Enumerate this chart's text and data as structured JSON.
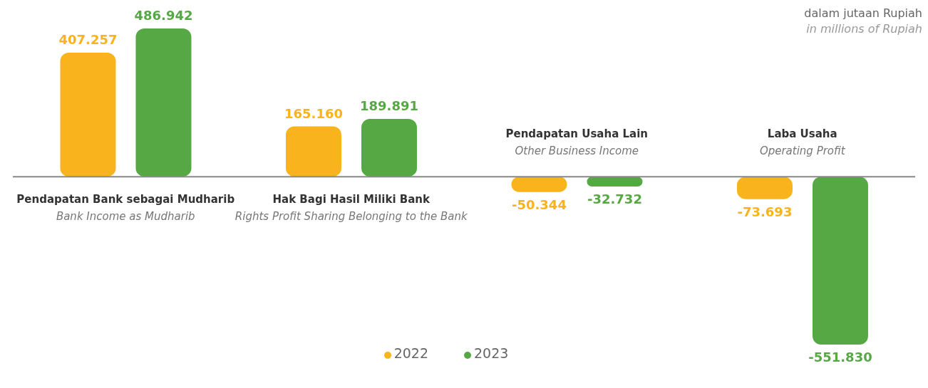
{
  "chart_data": {
    "type": "bar",
    "categories": [
      "Pendapatan Bank sebagai Mudharib\nBank Income as Mudharib",
      "Hak Bagi Hasil Miliki Bank\nRights Profit Sharing Belonging to the Bank",
      "Pendapatan Usaha Lain\nOther Business Income",
      "Laba Usaha\nOperating Profit"
    ],
    "series": [
      {
        "name": "2022",
        "color": "#f9b31c",
        "values": [
          407257,
          165160,
          -50344,
          -73693
        ],
        "value_labels": [
          "407.257",
          "165.160",
          "-50.344",
          "-73.693"
        ]
      },
      {
        "name": "2023",
        "color": "#56a845",
        "values": [
          486942,
          189891,
          -32732,
          -551830
        ],
        "value_labels": [
          "486.942",
          "189.891",
          "-32.732",
          "-551.830"
        ]
      }
    ],
    "annotations": [
      "dalam jutaan Rupiah",
      "in millions of Rupiah"
    ],
    "legend": "bottom",
    "grid": false
  }
}
